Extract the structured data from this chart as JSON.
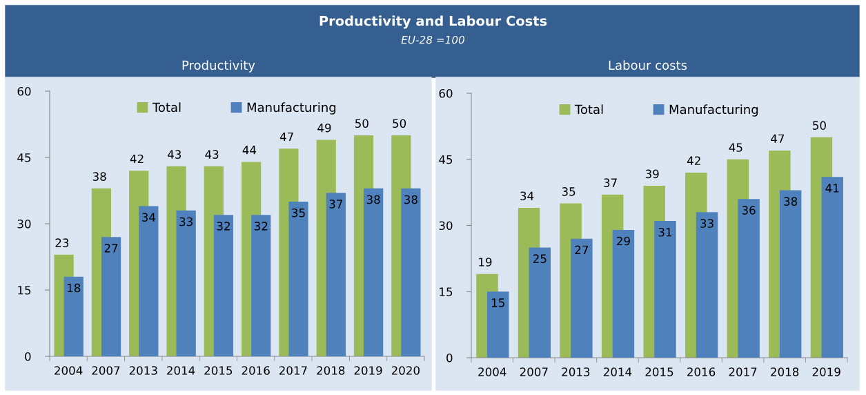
{
  "chart_data": [
    {
      "type": "other",
      "title": "Productivity and Labour Costs",
      "subtitle": "EU-28 =100"
    },
    {
      "type": "bar",
      "title": "Productivity",
      "categories": [
        "2004",
        "2007",
        "2013",
        "2014",
        "2015",
        "2016",
        "2017",
        "2018",
        "2019",
        "2020"
      ],
      "series": [
        {
          "name": "Total",
          "color": "#9bbb59",
          "values": [
            23,
            38,
            42,
            43,
            43,
            44,
            47,
            49,
            50,
            50
          ]
        },
        {
          "name": "Manufacturing",
          "color": "#4f81bd",
          "values": [
            18,
            27,
            34,
            33,
            32,
            32,
            35,
            37,
            38,
            38
          ]
        }
      ],
      "ylim": [
        0,
        60
      ],
      "yticks": [
        0,
        15,
        30,
        45,
        60
      ],
      "data_labels": true,
      "legend": "top"
    },
    {
      "type": "bar",
      "title": "Labour costs",
      "categories": [
        "2004",
        "2007",
        "2013",
        "2014",
        "2015",
        "2016",
        "2017",
        "2018",
        "2019"
      ],
      "series": [
        {
          "name": "Total",
          "color": "#9bbb59",
          "values": [
            19,
            34,
            35,
            37,
            39,
            42,
            45,
            47,
            50
          ]
        },
        {
          "name": "Manufacturing",
          "color": "#4f81bd",
          "values": [
            15,
            25,
            27,
            29,
            31,
            33,
            36,
            38,
            41
          ]
        }
      ],
      "ylim": [
        0,
        60
      ],
      "yticks": [
        0,
        15,
        30,
        45,
        60
      ],
      "data_labels": true,
      "legend": "top"
    }
  ]
}
